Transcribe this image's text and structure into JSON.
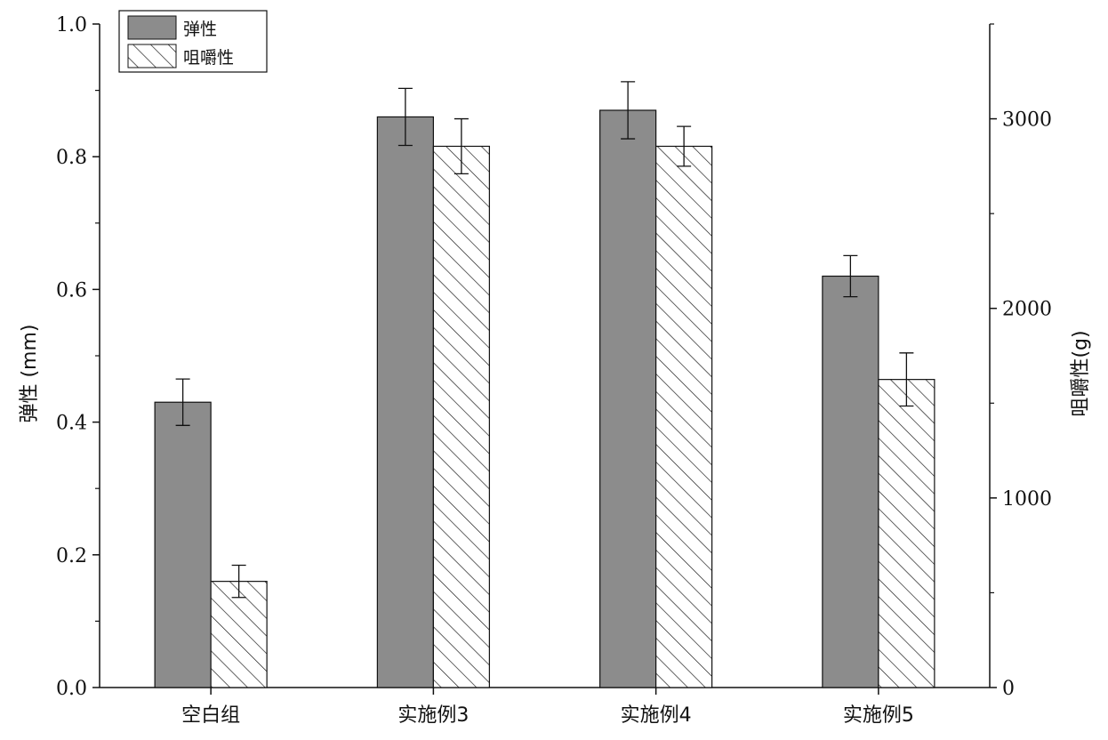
{
  "chart_data": {
    "type": "bar",
    "categories": [
      "空白组",
      "实施例3",
      "实施例4",
      "实施例5"
    ],
    "left_axis": {
      "label": "弹性 (mm)",
      "range": [
        0,
        1.0
      ],
      "ticks": [
        0.0,
        0.2,
        0.4,
        0.6,
        0.8,
        1.0
      ],
      "tick_labels": [
        "0.0",
        "0.2",
        "0.4",
        "0.6",
        "0.8",
        "1.0"
      ]
    },
    "right_axis": {
      "label": "咀嚼性(g)",
      "range": [
        0,
        3500
      ],
      "ticks": [
        0,
        1000,
        2000,
        3000
      ],
      "tick_labels": [
        "0",
        "1000",
        "2000",
        "3000"
      ]
    },
    "series": [
      {
        "name": "弹性",
        "axis": "left",
        "fill": "solid",
        "color": "#8c8c8c",
        "values": [
          0.43,
          0.86,
          0.87,
          0.62
        ],
        "errors": [
          0.035,
          0.043,
          0.043,
          0.031
        ]
      },
      {
        "name": "咀嚼性",
        "axis": "right",
        "fill": "hatch",
        "color": "#ffffff",
        "values": [
          560,
          2855,
          2855,
          1625
        ],
        "errors": [
          85,
          145,
          105,
          140
        ]
      }
    ],
    "legend_position": "top-left",
    "grid": false
  }
}
